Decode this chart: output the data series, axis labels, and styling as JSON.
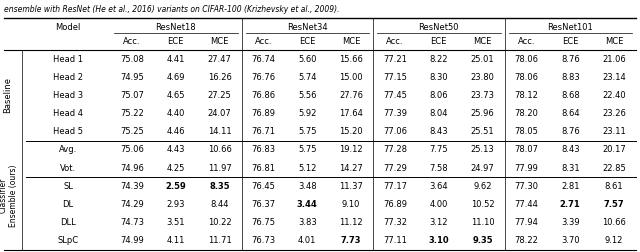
{
  "caption": "ensemble with ResNet (He et al., 2016) variants on CIFAR-100 (Krizhevsky et al., 2009).",
  "col_groups": [
    "ResNet18",
    "ResNet34",
    "ResNet50",
    "ResNet101"
  ],
  "sub_cols": [
    "Acc.",
    "ECE",
    "MCE"
  ],
  "row_group_labels": [
    "Baseline",
    "Classifier\nEnsemble (ours)"
  ],
  "models": [
    "Head 1",
    "Head 2",
    "Head 3",
    "Head 4",
    "Head 5",
    "Avg.",
    "Vot.",
    "SL",
    "DL",
    "DLL",
    "SLpC"
  ],
  "group_idx": [
    0,
    0,
    0,
    0,
    0,
    1,
    1,
    1,
    1,
    1,
    1
  ],
  "values": [
    [
      75.08,
      4.41,
      27.47,
      76.74,
      5.6,
      15.66,
      77.21,
      8.22,
      25.01,
      78.06,
      8.76,
      21.06
    ],
    [
      74.95,
      4.69,
      16.26,
      76.76,
      5.74,
      15.0,
      77.15,
      8.3,
      23.8,
      78.06,
      8.83,
      23.14
    ],
    [
      75.07,
      4.65,
      27.25,
      76.86,
      5.56,
      27.76,
      77.45,
      8.06,
      23.73,
      78.12,
      8.68,
      22.4
    ],
    [
      75.22,
      4.4,
      24.07,
      76.89,
      5.92,
      17.64,
      77.39,
      8.04,
      25.96,
      78.2,
      8.64,
      23.26
    ],
    [
      75.25,
      4.46,
      14.11,
      76.71,
      5.75,
      15.2,
      77.06,
      8.43,
      25.51,
      78.05,
      8.76,
      23.11
    ],
    [
      75.06,
      4.43,
      10.66,
      76.83,
      5.75,
      19.12,
      77.28,
      7.75,
      25.13,
      78.07,
      8.43,
      20.17
    ],
    [
      74.96,
      4.25,
      11.97,
      76.81,
      5.12,
      14.27,
      77.29,
      7.58,
      24.97,
      77.99,
      8.31,
      22.85
    ],
    [
      74.39,
      2.59,
      8.35,
      76.45,
      3.48,
      11.37,
      77.17,
      3.64,
      9.62,
      77.3,
      2.81,
      8.61
    ],
    [
      74.29,
      2.93,
      8.44,
      76.37,
      3.44,
      9.1,
      76.89,
      4.0,
      10.52,
      77.44,
      2.71,
      7.57
    ],
    [
      74.73,
      3.51,
      10.22,
      76.75,
      3.83,
      11.12,
      77.32,
      3.12,
      11.1,
      77.94,
      3.39,
      10.66
    ],
    [
      74.99,
      4.11,
      11.71,
      76.73,
      4.01,
      7.73,
      77.11,
      3.1,
      9.35,
      78.22,
      3.7,
      9.12
    ]
  ],
  "bold": [
    [
      false,
      false,
      false,
      false,
      false,
      false,
      false,
      false,
      false,
      false,
      false,
      false
    ],
    [
      false,
      false,
      false,
      false,
      false,
      false,
      false,
      false,
      false,
      false,
      false,
      false
    ],
    [
      false,
      false,
      false,
      false,
      false,
      false,
      false,
      false,
      false,
      false,
      false,
      false
    ],
    [
      false,
      false,
      false,
      false,
      false,
      false,
      false,
      false,
      false,
      false,
      false,
      false
    ],
    [
      false,
      false,
      false,
      false,
      false,
      false,
      false,
      false,
      false,
      false,
      false,
      false
    ],
    [
      false,
      false,
      false,
      false,
      false,
      false,
      false,
      false,
      false,
      false,
      false,
      false
    ],
    [
      false,
      false,
      false,
      false,
      false,
      false,
      false,
      false,
      false,
      false,
      false,
      false
    ],
    [
      false,
      true,
      true,
      false,
      false,
      false,
      false,
      false,
      false,
      false,
      false,
      false
    ],
    [
      false,
      false,
      false,
      false,
      true,
      false,
      false,
      false,
      false,
      false,
      true,
      true
    ],
    [
      false,
      false,
      false,
      false,
      false,
      false,
      false,
      false,
      false,
      false,
      false,
      false
    ],
    [
      false,
      false,
      false,
      false,
      false,
      true,
      false,
      true,
      true,
      false,
      false,
      false
    ]
  ],
  "fontsize": 6.0,
  "caption_fontsize": 5.5
}
